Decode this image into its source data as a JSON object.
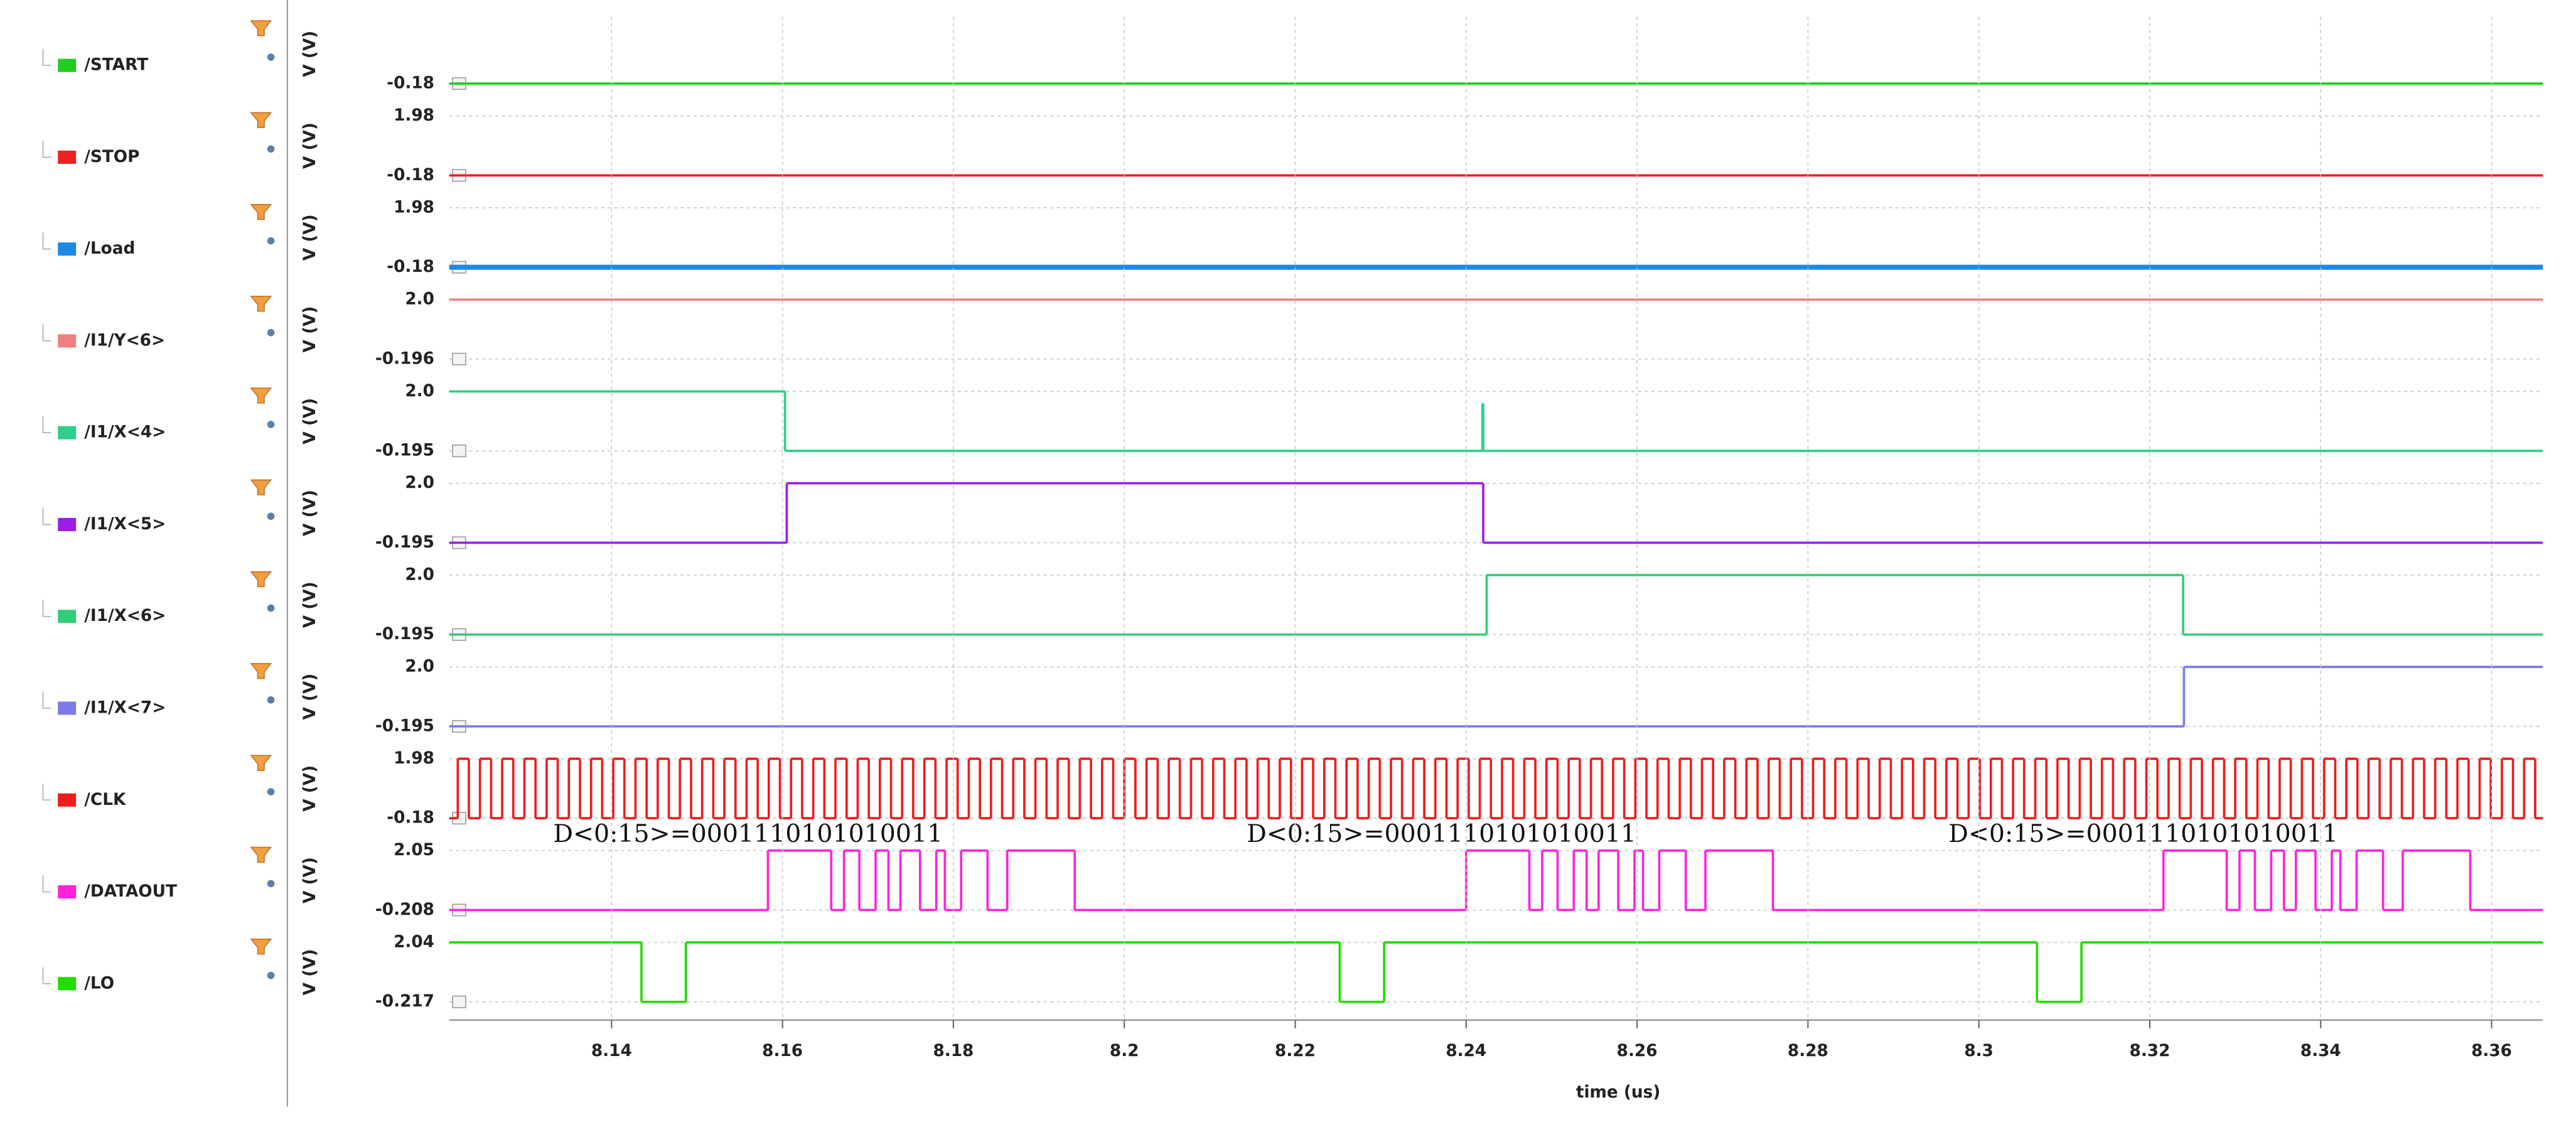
{
  "chart_data": [
    {
      "type": "line",
      "drawstyle": "steps-post",
      "ylabel": "V (V)",
      "xlim": [
        8.121,
        8.366
      ],
      "ylim": [
        -0.18,
        1.98
      ],
      "yticks": [
        -0.18
      ],
      "grid": true,
      "x": [
        8.121
      ],
      "series": [
        {
          "name": "/START",
          "color": "#22cc22",
          "values": [
            -0.18
          ]
        }
      ]
    },
    {
      "type": "line",
      "drawstyle": "steps-post",
      "ylabel": "V (V)",
      "xlim": [
        8.121,
        8.366
      ],
      "ylim": [
        -0.18,
        1.98
      ],
      "yticks": [
        -0.18,
        1.98
      ],
      "grid": true,
      "x": [
        8.121
      ],
      "series": [
        {
          "name": "/STOP",
          "color": "#ee2222",
          "values": [
            -0.18
          ]
        }
      ]
    },
    {
      "type": "line",
      "drawstyle": "steps-post",
      "ylabel": "V (V)",
      "xlim": [
        8.121,
        8.366
      ],
      "ylim": [
        -0.18,
        1.98
      ],
      "yticks": [
        -0.18,
        1.98
      ],
      "grid": true,
      "x": [
        8.121
      ],
      "series": [
        {
          "name": "/Load",
          "color": "#1e88e5",
          "linewidth": 3,
          "values": [
            -0.18
          ]
        }
      ]
    },
    {
      "type": "line",
      "drawstyle": "steps-post",
      "ylabel": "V (V)",
      "xlim": [
        8.121,
        8.366
      ],
      "ylim": [
        -0.196,
        2
      ],
      "yticks": [
        -0.196,
        {
          "value": 2,
          "label": "2.0"
        }
      ],
      "grid": true,
      "x": [
        8.121
      ],
      "series": [
        {
          "name": "/I1/Y<6>",
          "color": "#f08080",
          "values": [
            2
          ]
        }
      ]
    },
    {
      "type": "line",
      "drawstyle": "steps-post",
      "ylabel": "V (V)",
      "xlim": [
        8.121,
        8.366
      ],
      "ylim": [
        -0.195,
        2
      ],
      "yticks": [
        -0.195,
        {
          "value": 2,
          "label": "2.0"
        }
      ],
      "grid": true,
      "x": [
        8.121,
        8.1603,
        8.2419,
        8.242
      ],
      "series": [
        {
          "name": "/I1/X<4>",
          "color": "#2ed08a",
          "values": [
            2,
            -0.195,
            1.55,
            -0.195
          ]
        }
      ]
    },
    {
      "type": "line",
      "drawstyle": "steps-post",
      "ylabel": "V (V)",
      "xlim": [
        8.121,
        8.366
      ],
      "ylim": [
        -0.195,
        2
      ],
      "yticks": [
        -0.195,
        {
          "value": 2,
          "label": "2.0"
        }
      ],
      "grid": true,
      "x": [
        8.121,
        8.1605,
        8.242
      ],
      "series": [
        {
          "name": "/I1/X<5>",
          "color": "#9b1de8",
          "values": [
            -0.195,
            2,
            -0.195
          ]
        }
      ]
    },
    {
      "type": "line",
      "drawstyle": "steps-post",
      "ylabel": "V (V)",
      "xlim": [
        8.121,
        8.366
      ],
      "ylim": [
        -0.195,
        2
      ],
      "yticks": [
        -0.195,
        {
          "value": 2,
          "label": "2.0"
        }
      ],
      "grid": true,
      "x": [
        8.121,
        8.2424,
        8.3239
      ],
      "series": [
        {
          "name": "/I1/X<6>",
          "color": "#33cc77",
          "values": [
            -0.195,
            2,
            -0.195
          ]
        }
      ]
    },
    {
      "type": "line",
      "drawstyle": "steps-post",
      "ylabel": "V (V)",
      "xlim": [
        8.121,
        8.366
      ],
      "ylim": [
        -0.195,
        2
      ],
      "yticks": [
        -0.195,
        {
          "value": 2,
          "label": "2.0"
        }
      ],
      "grid": true,
      "x": [
        8.121,
        8.324
      ],
      "series": [
        {
          "name": "/I1/X<7>",
          "color": "#7b7be8",
          "values": [
            -0.195,
            2
          ]
        }
      ]
    },
    {
      "type": "line",
      "drawstyle": "steps-post",
      "ylabel": "V (V)",
      "xlim": [
        8.121,
        8.366
      ],
      "ylim": [
        -0.18,
        1.98
      ],
      "yticks": [
        -0.18,
        1.98
      ],
      "grid": true,
      "x": [
        8.121,
        8.122,
        8.1233,
        8.1246,
        8.1259,
        8.1272,
        8.1285,
        8.1298,
        8.1311,
        8.1324,
        8.1337,
        8.135,
        8.1363,
        8.1376,
        8.1389,
        8.1402,
        8.1415,
        8.1428,
        8.1441,
        8.1454,
        8.1467,
        8.148,
        8.1493,
        8.1506,
        8.1519,
        8.1532,
        8.1545,
        8.1558,
        8.1571,
        8.1584,
        8.1597,
        8.161,
        8.1623,
        8.1636,
        8.1649,
        8.1662,
        8.1675,
        8.1688,
        8.1701,
        8.1714,
        8.1727,
        8.174,
        8.1753,
        8.1766,
        8.1779,
        8.1792,
        8.1805,
        8.1818,
        8.1831,
        8.1844,
        8.1857,
        8.187,
        8.1883,
        8.1896,
        8.1909,
        8.1922,
        8.1935,
        8.1948,
        8.1961,
        8.1974,
        8.1987,
        8.2,
        8.2013,
        8.2026,
        8.2039,
        8.2052,
        8.2065,
        8.2078,
        8.2091,
        8.2104,
        8.2117,
        8.213,
        8.2143,
        8.2156,
        8.2169,
        8.2182,
        8.2195,
        8.2208,
        8.2221,
        8.2234,
        8.2247,
        8.226,
        8.2273,
        8.2286,
        8.2299,
        8.2312,
        8.2325,
        8.2338,
        8.2351,
        8.2364,
        8.2377,
        8.239,
        8.2403,
        8.2416,
        8.2429,
        8.2442,
        8.2455,
        8.2468,
        8.2481,
        8.2494,
        8.2507,
        8.252,
        8.2533,
        8.2546,
        8.2559,
        8.2572,
        8.2585,
        8.2598,
        8.2611,
        8.2624,
        8.2637,
        8.265,
        8.2663,
        8.2676,
        8.2689,
        8.2702,
        8.2715,
        8.2728,
        8.2741,
        8.2754,
        8.2767,
        8.278,
        8.2793,
        8.2806,
        8.2819,
        8.2832,
        8.2845,
        8.2858,
        8.2871,
        8.2884,
        8.2897,
        8.291,
        8.2923,
        8.2936,
        8.2949,
        8.2962,
        8.2975,
        8.2988,
        8.3001,
        8.3014,
        8.3027,
        8.304,
        8.3053,
        8.3066,
        8.3079,
        8.3092,
        8.3105,
        8.3118,
        8.3131,
        8.3144,
        8.3157,
        8.317,
        8.3183,
        8.3196,
        8.3209,
        8.3222,
        8.3235,
        8.3248,
        8.3261,
        8.3274,
        8.3287,
        8.33,
        8.3313,
        8.3326,
        8.3339,
        8.3352,
        8.3365,
        8.3378,
        8.3391,
        8.3404,
        8.3417,
        8.343,
        8.3443,
        8.3456,
        8.3469,
        8.3482,
        8.3495,
        8.3508,
        8.3521,
        8.3534,
        8.3547,
        8.356,
        8.3573,
        8.3586,
        8.3599,
        8.3612,
        8.3625,
        8.3638,
        8.3651
      ],
      "series": [
        {
          "name": "/CLK",
          "color": "#ee1c1c",
          "values": [
            -0.18,
            1.98,
            -0.18,
            1.98,
            -0.18,
            1.98,
            -0.18,
            1.98,
            -0.18,
            1.98,
            -0.18,
            1.98,
            -0.18,
            1.98,
            -0.18,
            1.98,
            -0.18,
            1.98,
            -0.18,
            1.98,
            -0.18,
            1.98,
            -0.18,
            1.98,
            -0.18,
            1.98,
            -0.18,
            1.98,
            -0.18,
            1.98,
            -0.18,
            1.98,
            -0.18,
            1.98,
            -0.18,
            1.98,
            -0.18,
            1.98,
            -0.18,
            1.98,
            -0.18,
            1.98,
            -0.18,
            1.98,
            -0.18,
            1.98,
            -0.18,
            1.98,
            -0.18,
            1.98,
            -0.18,
            1.98,
            -0.18,
            1.98,
            -0.18,
            1.98,
            -0.18,
            1.98,
            -0.18,
            1.98,
            -0.18,
            1.98,
            -0.18,
            1.98,
            -0.18,
            1.98,
            -0.18,
            1.98,
            -0.18,
            1.98,
            -0.18,
            1.98,
            -0.18,
            1.98,
            -0.18,
            1.98,
            -0.18,
            1.98,
            -0.18,
            1.98,
            -0.18,
            1.98,
            -0.18,
            1.98,
            -0.18,
            1.98,
            -0.18,
            1.98,
            -0.18,
            1.98,
            -0.18,
            1.98,
            -0.18,
            1.98,
            -0.18,
            1.98,
            -0.18,
            1.98,
            -0.18,
            1.98,
            -0.18,
            1.98,
            -0.18,
            1.98,
            -0.18,
            1.98,
            -0.18,
            1.98,
            -0.18,
            1.98,
            -0.18,
            1.98,
            -0.18,
            1.98,
            -0.18,
            1.98,
            -0.18,
            1.98,
            -0.18,
            1.98,
            -0.18,
            1.98,
            -0.18,
            1.98,
            -0.18,
            1.98,
            -0.18,
            1.98,
            -0.18,
            1.98,
            -0.18,
            1.98,
            -0.18,
            1.98,
            -0.18,
            1.98,
            -0.18,
            1.98,
            -0.18,
            1.98,
            -0.18,
            1.98,
            -0.18,
            1.98,
            -0.18,
            1.98,
            -0.18,
            1.98,
            -0.18,
            1.98,
            -0.18,
            1.98,
            -0.18,
            1.98,
            -0.18,
            1.98,
            -0.18,
            1.98,
            -0.18,
            1.98,
            -0.18,
            1.98,
            -0.18,
            1.98,
            -0.18,
            1.98,
            -0.18,
            1.98,
            -0.18,
            1.98,
            -0.18,
            1.98,
            -0.18,
            1.98,
            -0.18,
            1.98,
            -0.18,
            1.98,
            -0.18,
            1.98,
            -0.18,
            1.98,
            -0.18,
            1.98,
            -0.18,
            1.98,
            -0.18,
            1.98,
            -0.18
          ]
        }
      ]
    },
    {
      "type": "line",
      "drawstyle": "steps-post",
      "ylabel": "V (V)",
      "xlim": [
        8.121,
        8.366
      ],
      "ylim": [
        -0.208,
        2.05
      ],
      "yticks": [
        -0.208,
        2.05
      ],
      "grid": true,
      "annotations": [
        "D<0:15>=0001110101010011",
        "D<0:15>=0001110101010011",
        "D<0:15>=0001110101010011"
      ],
      "x": [
        8.121,
        8.1583,
        8.1657,
        8.1672,
        8.169,
        8.1709,
        8.1724,
        8.1738,
        8.1761,
        8.178,
        8.179,
        8.1809,
        8.184,
        8.1863,
        8.1942,
        8.24,
        8.2474,
        8.2489,
        8.2507,
        8.2526,
        8.2541,
        8.2555,
        8.2578,
        8.2597,
        8.2607,
        8.2626,
        8.2657,
        8.268,
        8.2759,
        8.3216,
        8.329,
        8.3305,
        8.3323,
        8.3342,
        8.3357,
        8.3371,
        8.3394,
        8.3413,
        8.3423,
        8.3442,
        8.3473,
        8.3496,
        8.3575
      ],
      "series": [
        {
          "name": "/DATAOUT",
          "color": "#ff22dd",
          "values": [
            -0.208,
            2.05,
            -0.208,
            2.05,
            -0.208,
            2.05,
            -0.208,
            2.05,
            -0.208,
            2.05,
            -0.208,
            2.05,
            -0.208,
            2.05,
            -0.208,
            2.05,
            -0.208,
            2.05,
            -0.208,
            2.05,
            -0.208,
            2.05,
            -0.208,
            2.05,
            -0.208,
            2.05,
            -0.208,
            2.05,
            -0.208,
            2.05,
            -0.208,
            2.05,
            -0.208,
            2.05,
            -0.208,
            2.05,
            -0.208,
            2.05,
            -0.208,
            2.05,
            -0.208,
            2.05,
            -0.208
          ]
        }
      ]
    },
    {
      "type": "line",
      "drawstyle": "steps-post",
      "ylabel": "V (V)",
      "xlabel": "time (us)",
      "xlim": [
        8.121,
        8.366
      ],
      "ylim": [
        -0.217,
        2.04
      ],
      "yticks": [
        -0.217,
        2.04
      ],
      "grid": true,
      "xticks": [
        8.14,
        8.16,
        8.18,
        8.2,
        8.22,
        8.24,
        8.26,
        8.28,
        8.3,
        8.32,
        8.34,
        8.36
      ],
      "x": [
        8.121,
        8.1435,
        8.1487,
        8.2252,
        8.2304,
        8.3068,
        8.312
      ],
      "series": [
        {
          "name": "/LO",
          "color": "#22dd00",
          "values": [
            2.04,
            -0.217,
            2.04,
            -0.217,
            2.04,
            -0.217,
            2.04
          ]
        }
      ]
    }
  ]
}
